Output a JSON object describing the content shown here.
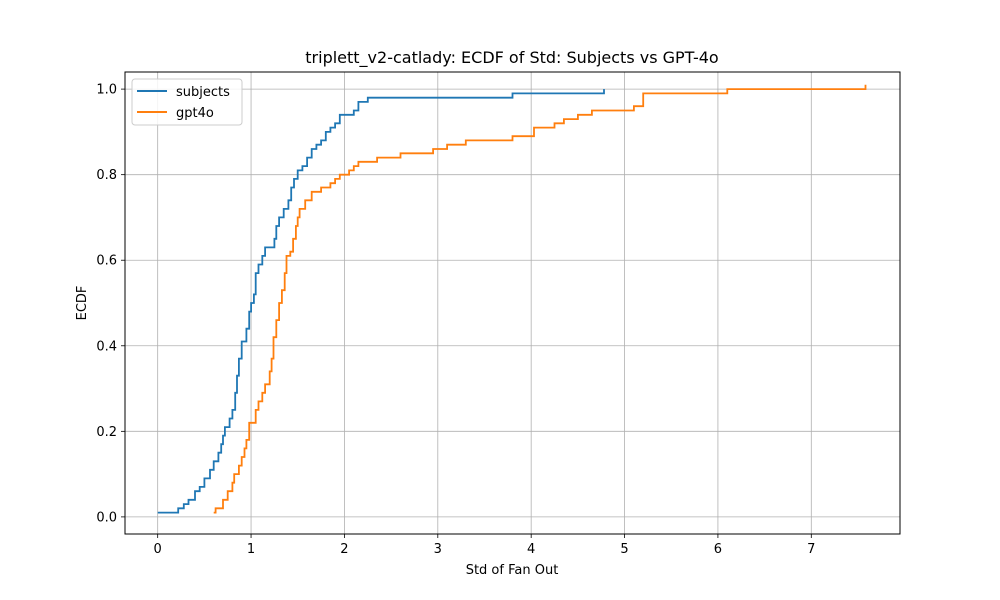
{
  "chart_data": {
    "type": "line",
    "title": "triplett_v2-catlady: ECDF of Std: Subjects vs GPT-4o",
    "xlabel": "Std of Fan Out",
    "ylabel": "ECDF",
    "xlim": [
      -0.35,
      7.95
    ],
    "ylim": [
      -0.04,
      1.04
    ],
    "x_ticks": [
      0,
      1,
      2,
      3,
      4,
      5,
      6,
      7
    ],
    "x_tick_labels": [
      "0",
      "1",
      "2",
      "3",
      "4",
      "5",
      "6",
      "7"
    ],
    "y_ticks": [
      0.0,
      0.2,
      0.4,
      0.6,
      0.8,
      1.0
    ],
    "y_tick_labels": [
      "0.0",
      "0.2",
      "0.4",
      "0.6",
      "0.8",
      "1.0"
    ],
    "grid": true,
    "legend_position": "top-left",
    "series": [
      {
        "name": "subjects",
        "color": "#1f77b4",
        "step": "post",
        "points": [
          [
            0.0,
            0.01
          ],
          [
            0.22,
            0.02
          ],
          [
            0.28,
            0.03
          ],
          [
            0.33,
            0.04
          ],
          [
            0.4,
            0.06
          ],
          [
            0.45,
            0.07
          ],
          [
            0.5,
            0.09
          ],
          [
            0.56,
            0.11
          ],
          [
            0.6,
            0.13
          ],
          [
            0.65,
            0.15
          ],
          [
            0.68,
            0.17
          ],
          [
            0.7,
            0.19
          ],
          [
            0.72,
            0.21
          ],
          [
            0.77,
            0.23
          ],
          [
            0.8,
            0.25
          ],
          [
            0.83,
            0.29
          ],
          [
            0.85,
            0.33
          ],
          [
            0.87,
            0.37
          ],
          [
            0.9,
            0.41
          ],
          [
            0.95,
            0.44
          ],
          [
            0.98,
            0.48
          ],
          [
            1.0,
            0.5
          ],
          [
            1.03,
            0.52
          ],
          [
            1.05,
            0.57
          ],
          [
            1.08,
            0.59
          ],
          [
            1.12,
            0.61
          ],
          [
            1.15,
            0.63
          ],
          [
            1.25,
            0.65
          ],
          [
            1.27,
            0.68
          ],
          [
            1.3,
            0.7
          ],
          [
            1.35,
            0.72
          ],
          [
            1.4,
            0.74
          ],
          [
            1.43,
            0.77
          ],
          [
            1.46,
            0.79
          ],
          [
            1.5,
            0.81
          ],
          [
            1.55,
            0.82
          ],
          [
            1.6,
            0.84
          ],
          [
            1.65,
            0.86
          ],
          [
            1.7,
            0.87
          ],
          [
            1.75,
            0.88
          ],
          [
            1.8,
            0.9
          ],
          [
            1.85,
            0.91
          ],
          [
            1.9,
            0.92
          ],
          [
            1.95,
            0.94
          ],
          [
            2.1,
            0.95
          ],
          [
            2.15,
            0.97
          ],
          [
            2.25,
            0.98
          ],
          [
            3.8,
            0.99
          ],
          [
            4.78,
            1.0
          ]
        ]
      },
      {
        "name": "gpt4o",
        "color": "#ff7f0e",
        "step": "post",
        "points": [
          [
            0.6,
            0.01
          ],
          [
            0.62,
            0.02
          ],
          [
            0.7,
            0.04
          ],
          [
            0.75,
            0.06
          ],
          [
            0.8,
            0.08
          ],
          [
            0.82,
            0.1
          ],
          [
            0.87,
            0.12
          ],
          [
            0.9,
            0.14
          ],
          [
            0.93,
            0.16
          ],
          [
            0.95,
            0.18
          ],
          [
            0.98,
            0.22
          ],
          [
            1.05,
            0.25
          ],
          [
            1.08,
            0.27
          ],
          [
            1.12,
            0.29
          ],
          [
            1.15,
            0.31
          ],
          [
            1.2,
            0.34
          ],
          [
            1.22,
            0.37
          ],
          [
            1.24,
            0.42
          ],
          [
            1.27,
            0.46
          ],
          [
            1.3,
            0.5
          ],
          [
            1.33,
            0.53
          ],
          [
            1.36,
            0.57
          ],
          [
            1.38,
            0.61
          ],
          [
            1.42,
            0.62
          ],
          [
            1.45,
            0.65
          ],
          [
            1.48,
            0.68
          ],
          [
            1.5,
            0.7
          ],
          [
            1.52,
            0.72
          ],
          [
            1.58,
            0.74
          ],
          [
            1.65,
            0.76
          ],
          [
            1.75,
            0.77
          ],
          [
            1.85,
            0.78
          ],
          [
            1.9,
            0.79
          ],
          [
            1.95,
            0.8
          ],
          [
            2.05,
            0.81
          ],
          [
            2.1,
            0.82
          ],
          [
            2.15,
            0.83
          ],
          [
            2.35,
            0.84
          ],
          [
            2.6,
            0.85
          ],
          [
            2.95,
            0.86
          ],
          [
            3.1,
            0.87
          ],
          [
            3.3,
            0.88
          ],
          [
            3.8,
            0.89
          ],
          [
            4.03,
            0.91
          ],
          [
            4.25,
            0.92
          ],
          [
            4.35,
            0.93
          ],
          [
            4.5,
            0.94
          ],
          [
            4.65,
            0.95
          ],
          [
            5.1,
            0.96
          ],
          [
            5.2,
            0.99
          ],
          [
            6.1,
            1.0
          ],
          [
            7.58,
            1.01
          ]
        ]
      }
    ]
  }
}
